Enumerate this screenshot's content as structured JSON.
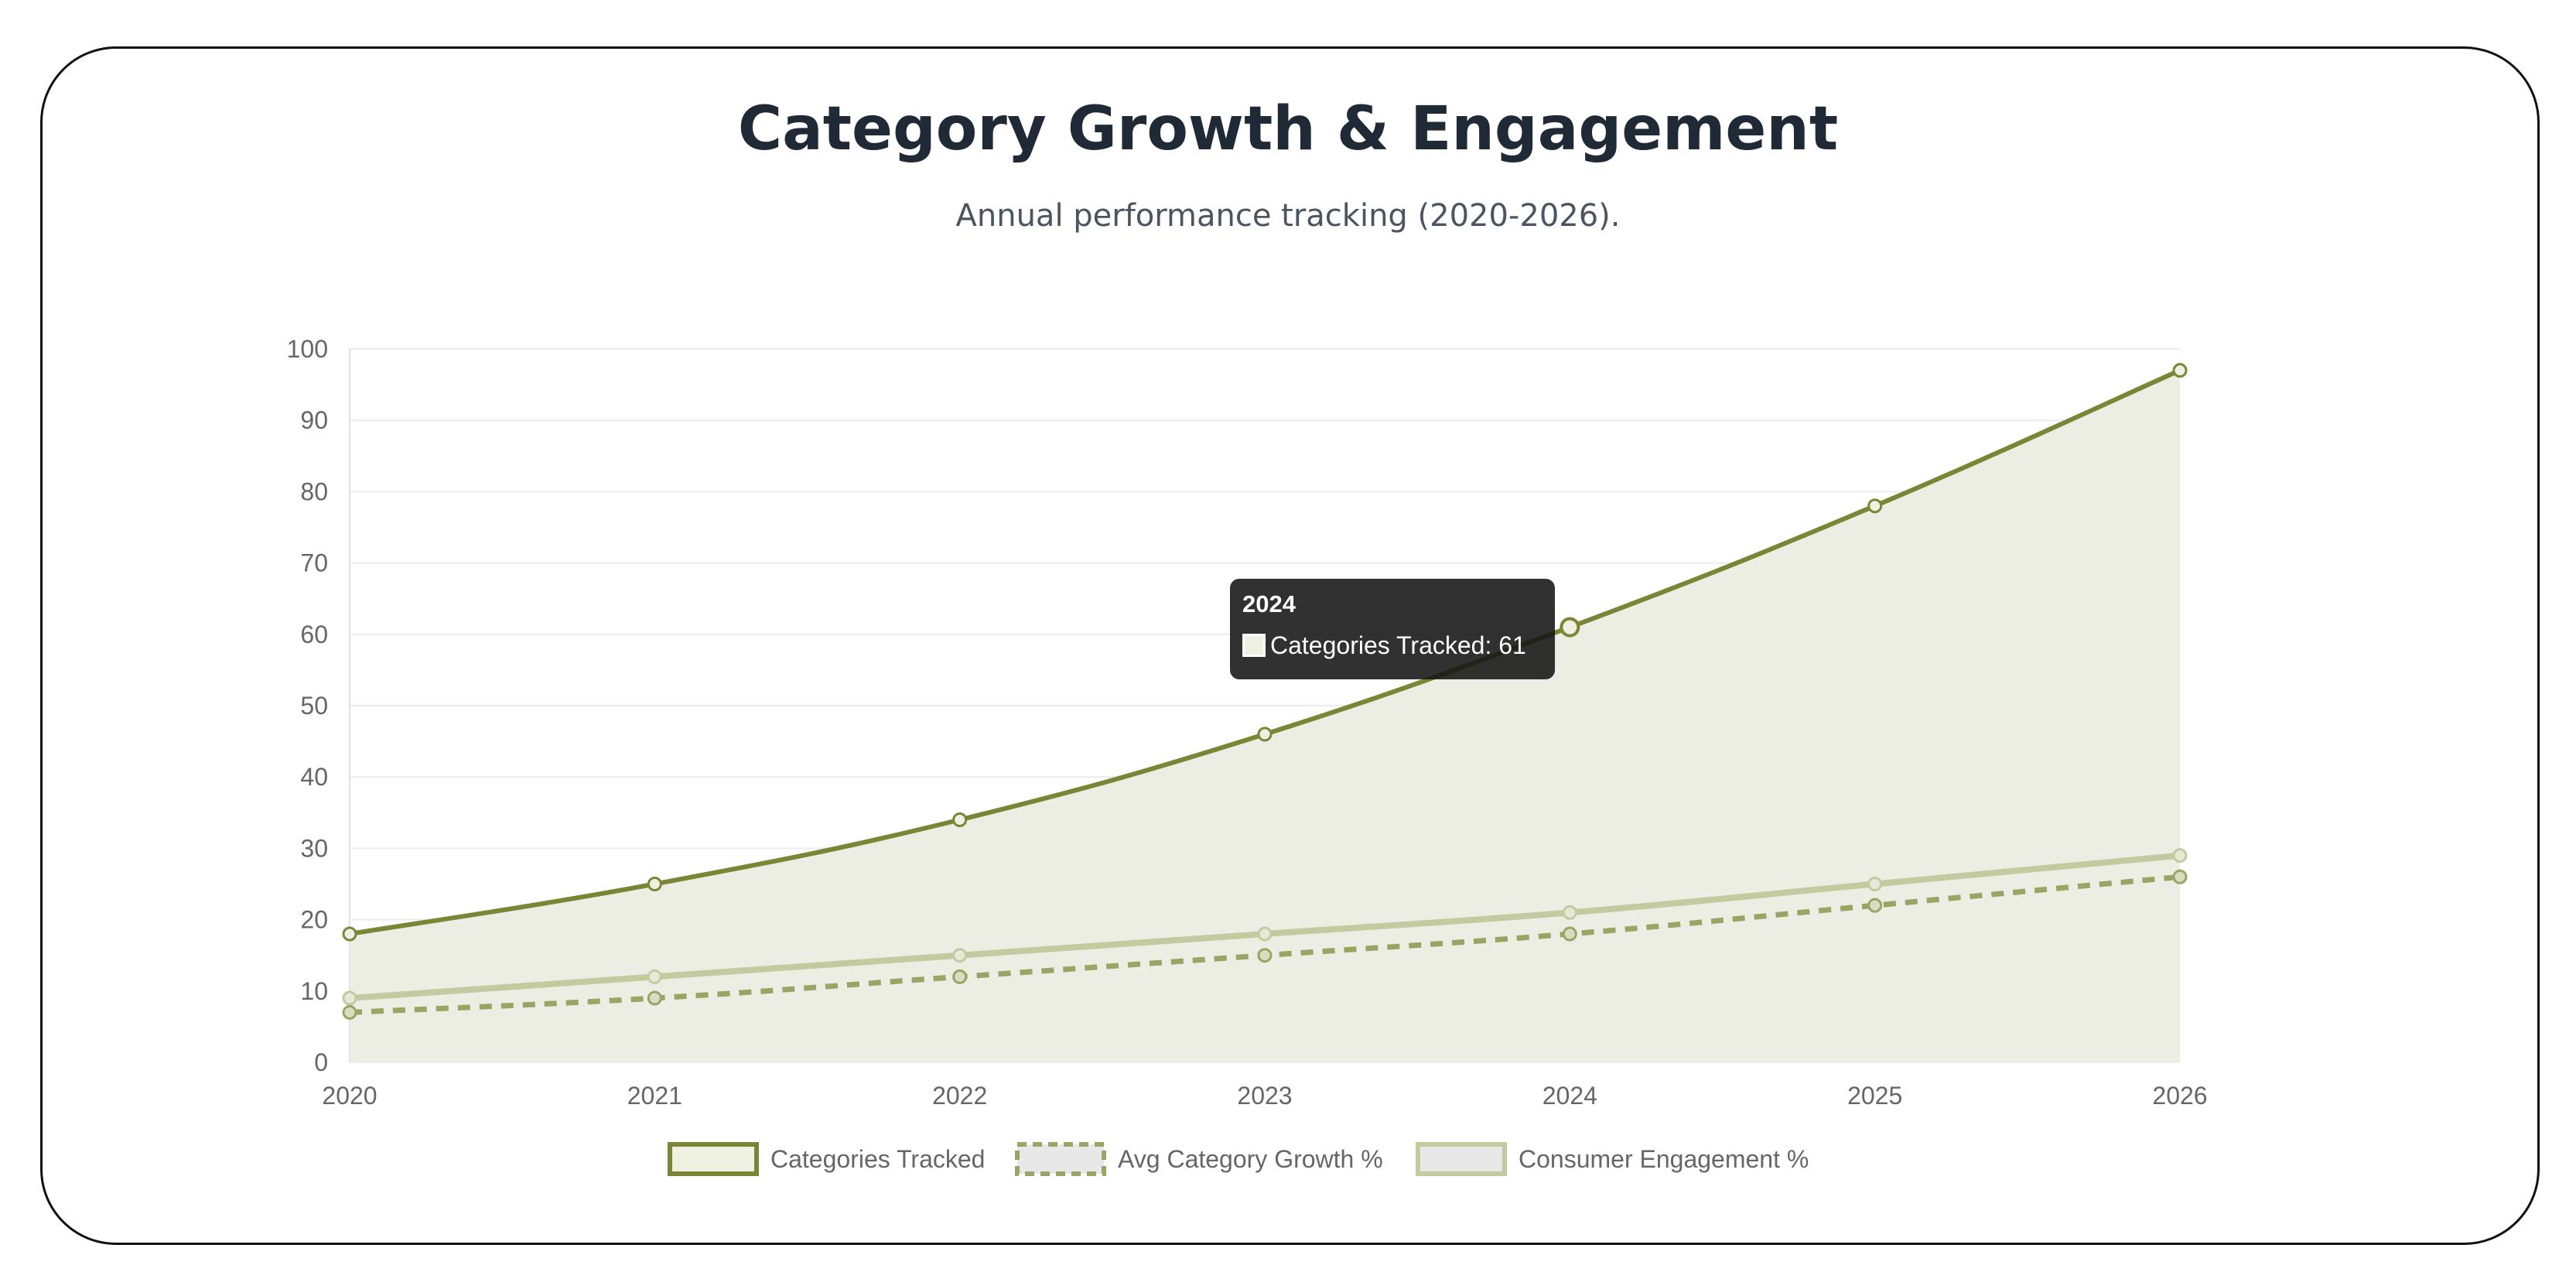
{
  "title": "Category Growth & Engagement",
  "subtitle": "Annual performance tracking (2020-2026).",
  "colors": {
    "categories": "#7b8536",
    "growth": "#9aa464",
    "engagement": "#c4caa0",
    "area_fill": "#eceee3",
    "grid": "#ececec",
    "axis_text": "#666666"
  },
  "tooltip": {
    "title": "2024",
    "label": "Categories Tracked: 61"
  },
  "chart_data": {
    "type": "line",
    "categories": [
      "2020",
      "2021",
      "2022",
      "2023",
      "2024",
      "2025",
      "2026"
    ],
    "ylim": [
      0,
      100
    ],
    "yticks": [
      0,
      10,
      20,
      30,
      40,
      50,
      60,
      70,
      80,
      90,
      100
    ],
    "grid": true,
    "legend_position": "bottom",
    "series": [
      {
        "name": "Categories Tracked",
        "values": [
          18,
          25,
          34,
          46,
          61,
          78,
          97
        ],
        "fill": true,
        "dashed": false
      },
      {
        "name": "Avg Category Growth %",
        "values": [
          7,
          9,
          12,
          15,
          18,
          22,
          26
        ],
        "fill": false,
        "dashed": true
      },
      {
        "name": "Consumer Engagement %",
        "values": [
          9,
          12,
          15,
          18,
          21,
          25,
          29
        ],
        "fill": false,
        "dashed": false
      }
    ]
  }
}
